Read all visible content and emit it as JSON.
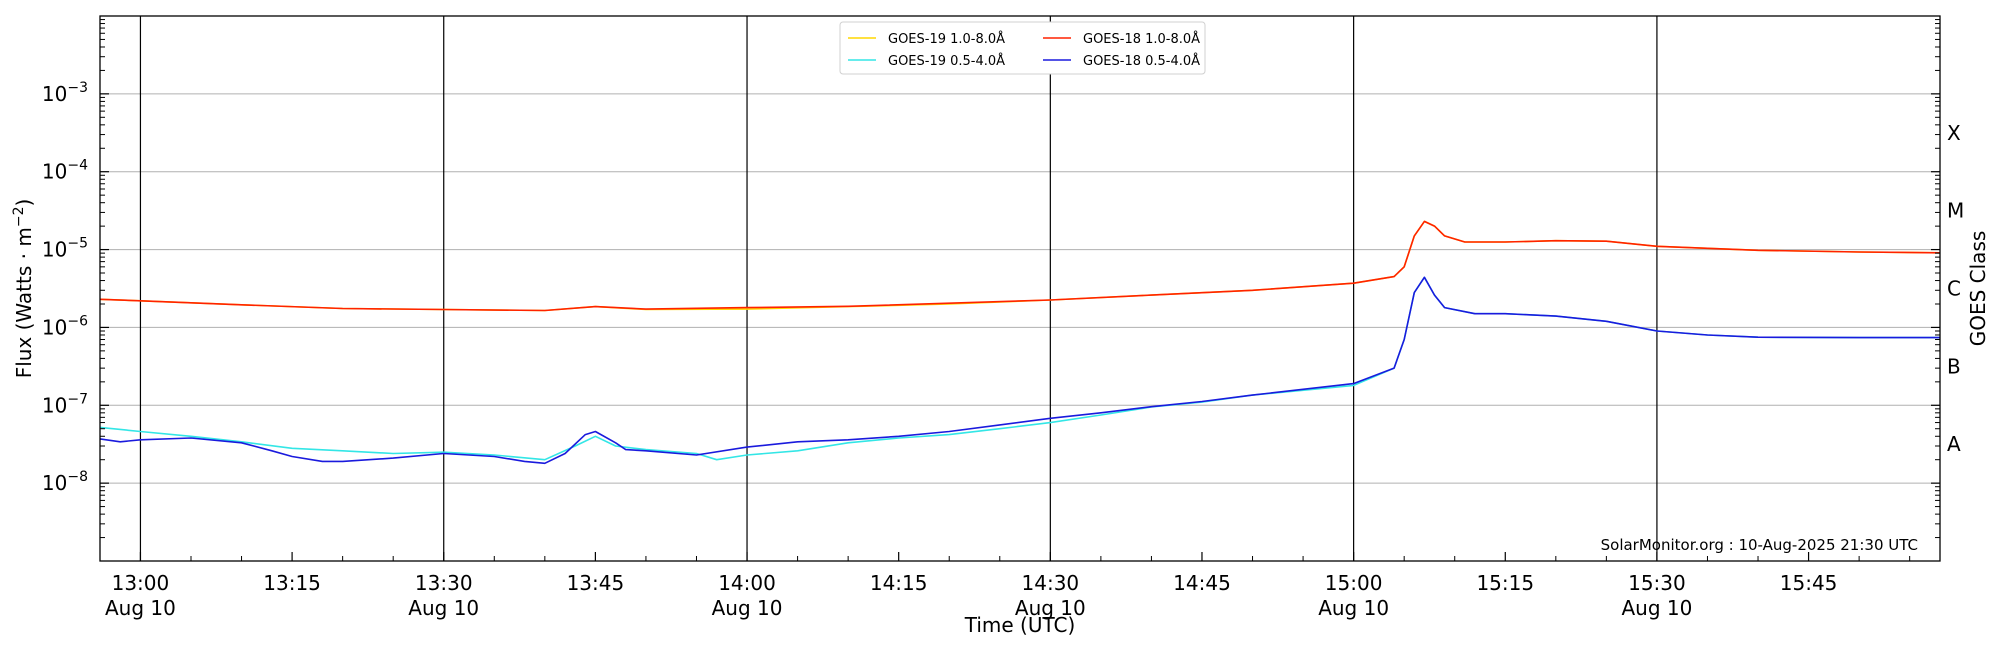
{
  "chart_data": {
    "type": "line",
    "xlabel": "Time (UTC)",
    "ylabel": "Flux (Watts · m",
    "ylabel_sup": "−2",
    "ylabel_close": ")",
    "right_axis_label": "GOES Class",
    "annotation": "SolarMonitor.org : 10-Aug-2025 21:30 UTC",
    "x_range": [
      "12:56",
      "15:58"
    ],
    "y_range": [
      1e-09,
      0.01
    ],
    "y_scale": "log",
    "grid": "horizontal",
    "legend_position": "top-center",
    "y_ticks": [
      {
        "value": 1e-08,
        "base": "10",
        "exp": "−8"
      },
      {
        "value": 1e-07,
        "base": "10",
        "exp": "−7"
      },
      {
        "value": 1e-06,
        "base": "10",
        "exp": "−6"
      },
      {
        "value": 1e-05,
        "base": "10",
        "exp": "−5"
      },
      {
        "value": 0.0001,
        "base": "10",
        "exp": "−4"
      },
      {
        "value": 0.001,
        "base": "10",
        "exp": "−3"
      }
    ],
    "x_ticks": [
      {
        "time": "13:00",
        "label": "13:00",
        "sub": "Aug 10"
      },
      {
        "time": "13:15",
        "label": "13:15",
        "sub": ""
      },
      {
        "time": "13:30",
        "label": "13:30",
        "sub": "Aug 10"
      },
      {
        "time": "13:45",
        "label": "13:45",
        "sub": ""
      },
      {
        "time": "14:00",
        "label": "14:00",
        "sub": "Aug 10"
      },
      {
        "time": "14:15",
        "label": "14:15",
        "sub": ""
      },
      {
        "time": "14:30",
        "label": "14:30",
        "sub": "Aug 10"
      },
      {
        "time": "14:45",
        "label": "14:45",
        "sub": ""
      },
      {
        "time": "15:00",
        "label": "15:00",
        "sub": "Aug 10"
      },
      {
        "time": "15:15",
        "label": "15:15",
        "sub": ""
      },
      {
        "time": "15:30",
        "label": "15:30",
        "sub": "Aug 10"
      },
      {
        "time": "15:45",
        "label": "15:45",
        "sub": ""
      }
    ],
    "vertical_lines": [
      "13:00",
      "13:30",
      "14:00",
      "14:30",
      "15:00",
      "15:30"
    ],
    "goes_classes": [
      {
        "label": "A",
        "value": 3.16e-08
      },
      {
        "label": "B",
        "value": 3.16e-07
      },
      {
        "label": "C",
        "value": 3.16e-06
      },
      {
        "label": "M",
        "value": 3.16e-05
      },
      {
        "label": "X",
        "value": 0.000316
      }
    ],
    "series": [
      {
        "name": "GOES-19 1.0-8.0Å",
        "color": "#ffd700",
        "points": [
          [
            "12:56",
            2.3e-06
          ],
          [
            "13:00",
            2.2e-06
          ],
          [
            "13:10",
            1.95e-06
          ],
          [
            "13:20",
            1.75e-06
          ],
          [
            "13:30",
            1.7e-06
          ],
          [
            "13:40",
            1.65e-06
          ],
          [
            "13:45",
            1.85e-06
          ],
          [
            "13:50",
            1.7e-06
          ],
          [
            "14:00",
            1.72e-06
          ],
          [
            "14:10",
            1.85e-06
          ],
          [
            "14:20",
            2e-06
          ],
          [
            "14:30",
            2.25e-06
          ],
          [
            "14:40",
            2.6e-06
          ],
          [
            "14:50",
            3e-06
          ],
          [
            "15:00",
            3.7e-06
          ],
          [
            "15:04",
            4.5e-06
          ],
          [
            "15:05",
            6e-06
          ],
          [
            "15:06",
            1.5e-05
          ],
          [
            "15:07",
            2.3e-05
          ],
          [
            "15:08",
            2e-05
          ],
          [
            "15:09",
            1.5e-05
          ],
          [
            "15:11",
            1.25e-05
          ],
          [
            "15:15",
            1.25e-05
          ],
          [
            "15:20",
            1.3e-05
          ],
          [
            "15:25",
            1.28e-05
          ],
          [
            "15:30",
            1.1e-05
          ],
          [
            "15:40",
            9.8e-06
          ],
          [
            "15:50",
            9.3e-06
          ],
          [
            "15:58",
            9.1e-06
          ]
        ]
      },
      {
        "name": "GOES-18 1.0-8.0Å",
        "color": "#ff2200",
        "points": [
          [
            "12:56",
            2.3e-06
          ],
          [
            "13:00",
            2.2e-06
          ],
          [
            "13:10",
            1.95e-06
          ],
          [
            "13:20",
            1.75e-06
          ],
          [
            "13:30",
            1.7e-06
          ],
          [
            "13:40",
            1.65e-06
          ],
          [
            "13:45",
            1.85e-06
          ],
          [
            "13:50",
            1.72e-06
          ],
          [
            "14:00",
            1.8e-06
          ],
          [
            "14:10",
            1.87e-06
          ],
          [
            "14:20",
            2.05e-06
          ],
          [
            "14:30",
            2.25e-06
          ],
          [
            "14:40",
            2.6e-06
          ],
          [
            "14:50",
            3e-06
          ],
          [
            "15:00",
            3.7e-06
          ],
          [
            "15:04",
            4.5e-06
          ],
          [
            "15:05",
            6e-06
          ],
          [
            "15:06",
            1.5e-05
          ],
          [
            "15:07",
            2.3e-05
          ],
          [
            "15:08",
            2e-05
          ],
          [
            "15:09",
            1.5e-05
          ],
          [
            "15:11",
            1.25e-05
          ],
          [
            "15:15",
            1.25e-05
          ],
          [
            "15:20",
            1.3e-05
          ],
          [
            "15:25",
            1.28e-05
          ],
          [
            "15:30",
            1.1e-05
          ],
          [
            "15:40",
            9.8e-06
          ],
          [
            "15:50",
            9.3e-06
          ],
          [
            "15:58",
            9.1e-06
          ]
        ]
      },
      {
        "name": "GOES-19 0.5-4.0Å",
        "color": "#33e6e6",
        "points": [
          [
            "12:56",
            5.2e-08
          ],
          [
            "13:00",
            4.6e-08
          ],
          [
            "13:05",
            4e-08
          ],
          [
            "13:10",
            3.4e-08
          ],
          [
            "13:15",
            2.8e-08
          ],
          [
            "13:20",
            2.6e-08
          ],
          [
            "13:25",
            2.4e-08
          ],
          [
            "13:30",
            2.5e-08
          ],
          [
            "13:35",
            2.3e-08
          ],
          [
            "13:40",
            2e-08
          ],
          [
            "13:43",
            3e-08
          ],
          [
            "13:45",
            4e-08
          ],
          [
            "13:47",
            3e-08
          ],
          [
            "13:50",
            2.7e-08
          ],
          [
            "13:55",
            2.4e-08
          ],
          [
            "13:57",
            2e-08
          ],
          [
            "14:00",
            2.3e-08
          ],
          [
            "14:05",
            2.6e-08
          ],
          [
            "14:10",
            3.3e-08
          ],
          [
            "14:15",
            3.8e-08
          ],
          [
            "14:20",
            4.2e-08
          ],
          [
            "14:25",
            5e-08
          ],
          [
            "14:30",
            6e-08
          ],
          [
            "14:35",
            7.5e-08
          ],
          [
            "14:40",
            9.5e-08
          ],
          [
            "14:45",
            1.1e-07
          ],
          [
            "14:50",
            1.35e-07
          ],
          [
            "15:00",
            1.8e-07
          ],
          [
            "15:04",
            3e-07
          ],
          [
            "15:05",
            7e-07
          ],
          [
            "15:06",
            2.8e-06
          ],
          [
            "15:07",
            4.4e-06
          ],
          [
            "15:08",
            2.6e-06
          ],
          [
            "15:09",
            1.8e-06
          ],
          [
            "15:12",
            1.5e-06
          ],
          [
            "15:15",
            1.5e-06
          ],
          [
            "15:20",
            1.4e-06
          ],
          [
            "15:25",
            1.2e-06
          ],
          [
            "15:30",
            9e-07
          ],
          [
            "15:35",
            8e-07
          ],
          [
            "15:40",
            7.5e-07
          ],
          [
            "15:50",
            7.4e-07
          ],
          [
            "15:58",
            7.4e-07
          ]
        ]
      },
      {
        "name": "GOES-18 0.5-4.0Å",
        "color": "#1a1add",
        "points": [
          [
            "12:56",
            3.7e-08
          ],
          [
            "12:58",
            3.4e-08
          ],
          [
            "13:00",
            3.6e-08
          ],
          [
            "13:05",
            3.8e-08
          ],
          [
            "13:10",
            3.3e-08
          ],
          [
            "13:13",
            2.6e-08
          ],
          [
            "13:15",
            2.2e-08
          ],
          [
            "13:18",
            1.9e-08
          ],
          [
            "13:20",
            1.9e-08
          ],
          [
            "13:25",
            2.1e-08
          ],
          [
            "13:30",
            2.4e-08
          ],
          [
            "13:35",
            2.2e-08
          ],
          [
            "13:38",
            1.9e-08
          ],
          [
            "13:40",
            1.8e-08
          ],
          [
            "13:42",
            2.4e-08
          ],
          [
            "13:44",
            4.2e-08
          ],
          [
            "13:45",
            4.6e-08
          ],
          [
            "13:47",
            3.3e-08
          ],
          [
            "13:48",
            2.7e-08
          ],
          [
            "13:50",
            2.6e-08
          ],
          [
            "13:55",
            2.3e-08
          ],
          [
            "14:00",
            2.9e-08
          ],
          [
            "14:05",
            3.4e-08
          ],
          [
            "14:10",
            3.6e-08
          ],
          [
            "14:15",
            4e-08
          ],
          [
            "14:20",
            4.6e-08
          ],
          [
            "14:25",
            5.6e-08
          ],
          [
            "14:30",
            6.8e-08
          ],
          [
            "14:35",
            8e-08
          ],
          [
            "14:40",
            9.6e-08
          ],
          [
            "14:45",
            1.12e-07
          ],
          [
            "14:50",
            1.35e-07
          ],
          [
            "15:00",
            1.9e-07
          ],
          [
            "15:04",
            3e-07
          ],
          [
            "15:05",
            7e-07
          ],
          [
            "15:06",
            2.8e-06
          ],
          [
            "15:07",
            4.4e-06
          ],
          [
            "15:08",
            2.6e-06
          ],
          [
            "15:09",
            1.8e-06
          ],
          [
            "15:12",
            1.5e-06
          ],
          [
            "15:15",
            1.5e-06
          ],
          [
            "15:20",
            1.4e-06
          ],
          [
            "15:25",
            1.2e-06
          ],
          [
            "15:30",
            9e-07
          ],
          [
            "15:35",
            8e-07
          ],
          [
            "15:40",
            7.5e-07
          ],
          [
            "15:50",
            7.4e-07
          ],
          [
            "15:58",
            7.4e-07
          ]
        ]
      }
    ],
    "legend_order": [
      0,
      2,
      1,
      3
    ]
  }
}
